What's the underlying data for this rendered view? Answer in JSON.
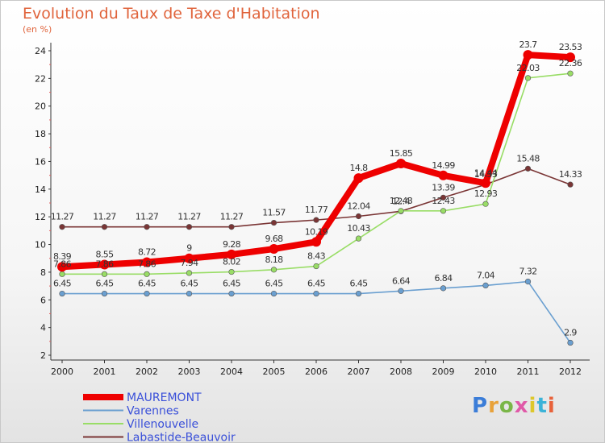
{
  "chart_data": {
    "type": "line",
    "title": "Evolution du Taux de Taxe d'Habitation",
    "subtitle": "(en %)",
    "x": [
      "2000",
      "2001",
      "2002",
      "2003",
      "2004",
      "2005",
      "2006",
      "2007",
      "2008",
      "2009",
      "2010",
      "2011",
      "2012"
    ],
    "ylim": [
      2,
      24
    ],
    "yticks": [
      2,
      4,
      6,
      8,
      10,
      12,
      14,
      16,
      18,
      20,
      22,
      24
    ],
    "grid": false,
    "legend_position": "bottom-left",
    "series": [
      {
        "name": "MAUREMONT",
        "color": "#ee0000",
        "values": [
          8.39,
          8.55,
          8.72,
          9,
          9.28,
          9.68,
          10.19,
          14.8,
          15.85,
          14.99,
          14.44,
          23.7,
          23.53
        ],
        "labels": [
          "8.39",
          "8.55",
          "8.72",
          "9",
          "9.28",
          "9.68",
          "10.19",
          "14.8",
          "15.85",
          "14.99",
          "14.44",
          "23.7",
          "23.53"
        ]
      },
      {
        "name": "Varennes",
        "color": "#6a9fd0",
        "values": [
          6.45,
          6.45,
          6.45,
          6.45,
          6.45,
          6.45,
          6.45,
          6.45,
          6.64,
          6.84,
          7.04,
          7.32,
          2.9
        ],
        "labels": [
          "6.45",
          "6.45",
          "6.45",
          "6.45",
          "6.45",
          "6.45",
          "6.45",
          "6.45",
          "6.64",
          "6.84",
          "7.04",
          "7.32",
          "2.9"
        ]
      },
      {
        "name": "Villenouvelle",
        "color": "#99dd66",
        "values": [
          7.86,
          7.86,
          7.86,
          7.94,
          8.02,
          8.18,
          8.43,
          10.43,
          12.43,
          12.43,
          12.93,
          22.03,
          22.36
        ],
        "labels": [
          "7.86",
          "7.86",
          "7.86",
          "7.94",
          "8.02",
          "8.18",
          "8.43",
          "10.43",
          "12.43",
          "12.43",
          "12.93",
          "22.03",
          "22.36"
        ]
      },
      {
        "name": "Labastide-Beauvoir",
        "color": "#7a3535",
        "values": [
          11.27,
          11.27,
          11.27,
          11.27,
          11.27,
          11.57,
          11.77,
          12.04,
          12.4,
          13.39,
          14.33,
          15.48,
          14.33
        ],
        "labels": [
          "11.27",
          "11.27",
          "11.27",
          "11.27",
          "11.27",
          "11.57",
          "11.77",
          "12.04",
          "12.4",
          "13.39",
          "14.33",
          "15.48",
          "14.33"
        ]
      }
    ]
  },
  "brand": {
    "logo_text": "Proxiti",
    "logo_colors": [
      "#3b7dd8",
      "#e8a23a",
      "#7ab648",
      "#e05aa8",
      "#ddc72b",
      "#3bb3d8",
      "#e8623a"
    ]
  }
}
